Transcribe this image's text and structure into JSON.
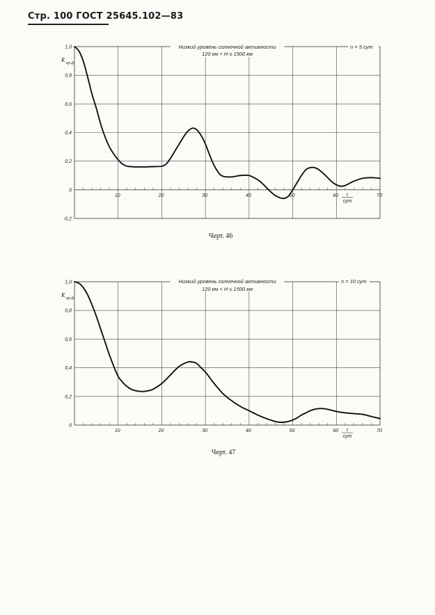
{
  "page": {
    "header": "Стр. 100 ГОСТ 25645.102—83"
  },
  "chart_data": [
    {
      "type": "line",
      "title": "Низкий уровень солнечной активности",
      "subtitle": "120 км < H ≤ 1500 км",
      "param": "n = 5 сут",
      "ylabel": "K̄",
      "ylabel_sub": "вр.ф",
      "xlabel_num": "τ",
      "xlabel_den": "сут",
      "caption": "Черт. 46",
      "xlim": [
        0,
        70
      ],
      "ylim": [
        -0.2,
        1.0
      ],
      "xticks": [
        10,
        20,
        30,
        40,
        50,
        60,
        70
      ],
      "yticks": [
        {
          "v": 1.0,
          "label": "1,0"
        },
        {
          "v": 0.8,
          "label": "0,8"
        },
        {
          "v": 0.6,
          "label": "0,6"
        },
        {
          "v": 0.4,
          "label": "0,4"
        },
        {
          "v": 0.2,
          "label": "0,2"
        },
        {
          "v": 0.0,
          "label": "0"
        },
        {
          "v": -0.2,
          "label": "-0,2"
        }
      ],
      "grid": true,
      "series": [
        {
          "x": [
            0,
            1,
            2,
            3,
            4,
            5,
            6,
            7,
            8,
            9,
            10,
            11,
            12,
            14,
            16,
            18,
            20,
            21,
            22,
            23,
            24,
            25,
            26,
            27,
            28,
            29,
            30,
            31,
            32,
            33,
            34,
            36,
            38,
            40,
            42,
            43,
            44,
            45,
            46,
            47,
            48,
            49,
            50,
            51,
            52,
            53,
            54,
            55,
            56,
            57,
            58,
            59,
            60,
            61,
            62,
            63,
            64,
            66,
            68,
            70
          ],
          "y": [
            1.0,
            0.97,
            0.9,
            0.79,
            0.67,
            0.57,
            0.46,
            0.37,
            0.3,
            0.25,
            0.21,
            0.18,
            0.165,
            0.16,
            0.16,
            0.162,
            0.165,
            0.18,
            0.22,
            0.27,
            0.32,
            0.37,
            0.41,
            0.43,
            0.42,
            0.38,
            0.32,
            0.24,
            0.17,
            0.12,
            0.095,
            0.09,
            0.1,
            0.1,
            0.07,
            0.045,
            0.015,
            -0.015,
            -0.04,
            -0.055,
            -0.06,
            -0.045,
            0.0,
            0.05,
            0.1,
            0.14,
            0.155,
            0.155,
            0.14,
            0.115,
            0.085,
            0.055,
            0.035,
            0.025,
            0.03,
            0.045,
            0.06,
            0.08,
            0.085,
            0.08
          ]
        }
      ]
    },
    {
      "type": "line",
      "title": "Низкий уровень солнечной активности",
      "subtitle": "120 км < H ≤ 1500 км",
      "param": "n = 10 сут",
      "ylabel": "K̄",
      "ylabel_sub": "вр.ф",
      "xlabel_num": "τ",
      "xlabel_den": "сут",
      "caption": "Черт. 47",
      "xlim": [
        0,
        70
      ],
      "ylim": [
        0,
        1.0
      ],
      "xticks": [
        10,
        20,
        30,
        40,
        50,
        60,
        70
      ],
      "yticks": [
        {
          "v": 1.0,
          "label": "1,0"
        },
        {
          "v": 0.8,
          "label": "0,8"
        },
        {
          "v": 0.6,
          "label": "0,6"
        },
        {
          "v": 0.4,
          "label": "0,4"
        },
        {
          "v": 0.2,
          "label": "0,2"
        },
        {
          "v": 0.0,
          "label": "0"
        }
      ],
      "grid": true,
      "series": [
        {
          "x": [
            0,
            1,
            2,
            3,
            4,
            5,
            6,
            7,
            8,
            9,
            10,
            11,
            12,
            13,
            14,
            15,
            16,
            17,
            18,
            20,
            22,
            24,
            26,
            27,
            28,
            29,
            30,
            31,
            32,
            34,
            36,
            38,
            40,
            42,
            44,
            46,
            47,
            48,
            49,
            50,
            51,
            52,
            53,
            54,
            55,
            56,
            57,
            58,
            60,
            62,
            64,
            66,
            68,
            70
          ],
          "y": [
            1.0,
            0.99,
            0.96,
            0.91,
            0.84,
            0.76,
            0.67,
            0.58,
            0.49,
            0.41,
            0.34,
            0.3,
            0.27,
            0.25,
            0.24,
            0.235,
            0.235,
            0.24,
            0.25,
            0.29,
            0.35,
            0.41,
            0.44,
            0.44,
            0.43,
            0.4,
            0.37,
            0.33,
            0.29,
            0.22,
            0.17,
            0.13,
            0.1,
            0.07,
            0.045,
            0.025,
            0.02,
            0.02,
            0.025,
            0.035,
            0.05,
            0.07,
            0.085,
            0.1,
            0.11,
            0.115,
            0.115,
            0.11,
            0.095,
            0.085,
            0.08,
            0.075,
            0.06,
            0.045
          ]
        }
      ]
    }
  ]
}
